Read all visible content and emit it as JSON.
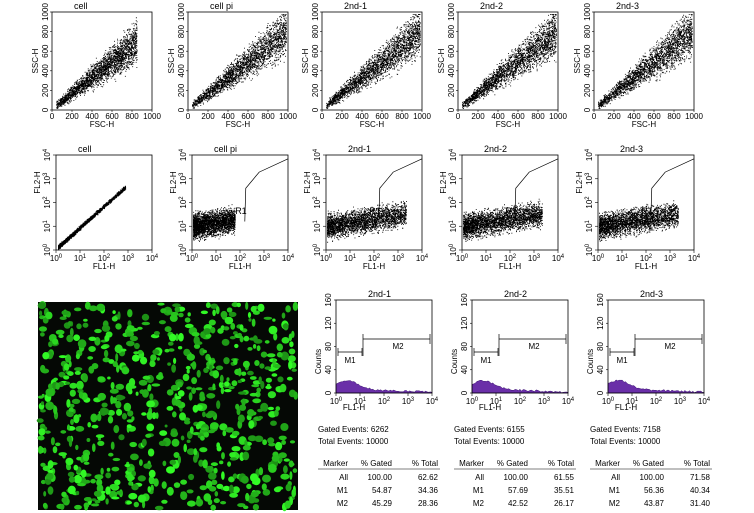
{
  "top_row": {
    "titles": [
      "cell",
      "cell pi",
      "2nd-1",
      "2nd-2",
      "2nd-3"
    ],
    "x_label": "FSC-H",
    "y_label": "SSC-H",
    "ticks": [
      "0",
      "200",
      "400",
      "600",
      "800",
      "1000"
    ]
  },
  "middle_row": {
    "titles": [
      "cell",
      "cell pi",
      "2nd-1",
      "2nd-2",
      "2nd-3"
    ],
    "x_label": "FL1-H",
    "y_label": "FL2-H",
    "tick_base": "10",
    "tick_exponents": [
      "0",
      "1",
      "2",
      "3",
      "4"
    ],
    "gate_label": "R1"
  },
  "histograms": {
    "titles": [
      "2nd-1",
      "2nd-2",
      "2nd-3"
    ],
    "y_label": "Counts",
    "x_label": "FL1-H",
    "y_ticks": [
      "0",
      "40",
      "80",
      "120",
      "160"
    ],
    "markers": [
      "M1",
      "M2"
    ],
    "panels": [
      {
        "gated_events": "Gated Events: 6262",
        "total_events": "Total Events: 10000",
        "table": {
          "header": [
            "Marker",
            "% Gated",
            "% Total"
          ],
          "rows": [
            [
              "All",
              "100.00",
              "62.62"
            ],
            [
              "M1",
              "54.87",
              "34.36"
            ],
            [
              "M2",
              "45.29",
              "28.36"
            ]
          ]
        }
      },
      {
        "gated_events": "Gated Events: 6155",
        "total_events": "Total Events: 10000",
        "table": {
          "header": [
            "Marker",
            "% Gated",
            "% Total"
          ],
          "rows": [
            [
              "All",
              "100.00",
              "61.55"
            ],
            [
              "M1",
              "57.69",
              "35.51"
            ],
            [
              "M2",
              "42.52",
              "26.17"
            ]
          ]
        }
      },
      {
        "gated_events": "Gated Events: 7158",
        "total_events": "Total Events: 10000",
        "table": {
          "header": [
            "Marker",
            "% Gated",
            "% Total"
          ],
          "rows": [
            [
              "All",
              "100.00",
              "71.58"
            ],
            [
              "M1",
              "56.36",
              "40.34"
            ],
            [
              "M2",
              "43.87",
              "31.40"
            ]
          ]
        }
      }
    ]
  }
}
